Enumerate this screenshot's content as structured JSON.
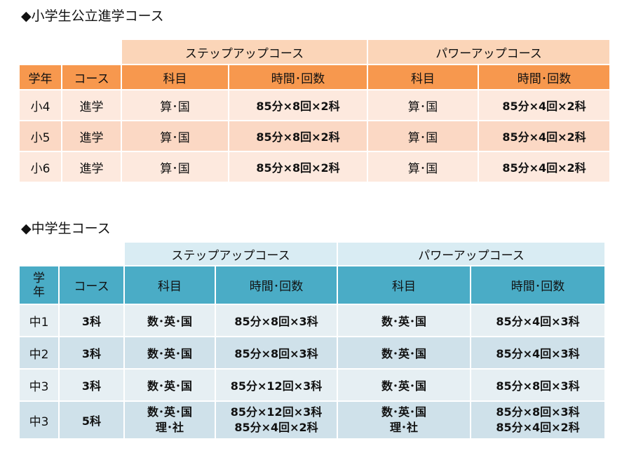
{
  "elementary": {
    "heading": "◆小学生公立進学コース",
    "courses": [
      "ステップアップコース",
      "パワーアップコース"
    ],
    "columns": [
      "学年",
      "コース",
      "科目",
      "時間･回数",
      "科目",
      "時間･回数"
    ],
    "rows": [
      {
        "grade": "小4",
        "course": "進学",
        "step_subj": "算･国",
        "step_time": "85分×8回×2科",
        "power_subj": "算･国",
        "power_time": "85分×4回×2科"
      },
      {
        "grade": "小5",
        "course": "進学",
        "step_subj": "算･国",
        "step_time": "85分×8回×2科",
        "power_subj": "算･国",
        "power_time": "85分×4回×2科"
      },
      {
        "grade": "小6",
        "course": "進学",
        "step_subj": "算･国",
        "step_time": "85分×8回×2科",
        "power_subj": "算･国",
        "power_time": "85分×4回×2科"
      }
    ]
  },
  "junior_high": {
    "heading": "◆中学生コース",
    "courses": [
      "ステップアップコース",
      "パワーアップコース"
    ],
    "columns": [
      "学年",
      "コース",
      "科目",
      "時間･回数",
      "科目",
      "時間･回数"
    ],
    "rows": [
      {
        "grade": "中1",
        "course": "3科",
        "step_subj": [
          "数･英･国"
        ],
        "step_time": [
          "85分×8回×3科"
        ],
        "power_subj": [
          "数･英･国"
        ],
        "power_time": [
          "85分×4回×3科"
        ]
      },
      {
        "grade": "中2",
        "course": "3科",
        "step_subj": [
          "数･英･国"
        ],
        "step_time": [
          "85分×8回×3科"
        ],
        "power_subj": [
          "数･英･国"
        ],
        "power_time": [
          "85分×4回×3科"
        ]
      },
      {
        "grade": "中3",
        "course": "3科",
        "step_subj": [
          "数･英･国"
        ],
        "step_time": [
          "85分×12回×3科"
        ],
        "power_subj": [
          "数･英･国"
        ],
        "power_time": [
          "85分×8回×3科"
        ]
      },
      {
        "grade": "中3",
        "course": "5科",
        "step_subj": [
          "数･英･国",
          "理･社"
        ],
        "step_time": [
          "85分×12回×3科",
          "85分×4回×2科"
        ],
        "power_subj": [
          "数･英･国",
          "理･社"
        ],
        "power_time": [
          "85分×8回×3科",
          "85分×4回×2科"
        ]
      }
    ]
  },
  "colors": {
    "elem_course_bg": "#fbd5b8",
    "elem_header_bg": "#f7984e",
    "elem_row_light": "#fde9de",
    "elem_row_dark": "#fbd8c4",
    "jh_course_bg": "#d9ecf3",
    "jh_header_bg": "#4aacc6",
    "jh_row_light": "#e6eff3",
    "jh_row_dark": "#cfe1ea"
  }
}
